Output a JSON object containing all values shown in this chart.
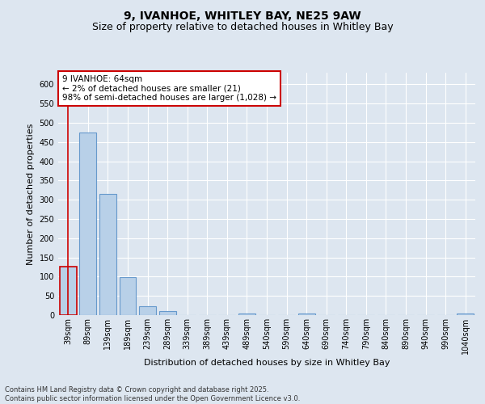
{
  "title_line1": "9, IVANHOE, WHITLEY BAY, NE25 9AW",
  "title_line2": "Size of property relative to detached houses in Whitley Bay",
  "xlabel": "Distribution of detached houses by size in Whitley Bay",
  "ylabel": "Number of detached properties",
  "categories": [
    "39sqm",
    "89sqm",
    "139sqm",
    "189sqm",
    "239sqm",
    "289sqm",
    "339sqm",
    "389sqm",
    "439sqm",
    "489sqm",
    "540sqm",
    "590sqm",
    "640sqm",
    "690sqm",
    "740sqm",
    "790sqm",
    "840sqm",
    "890sqm",
    "940sqm",
    "990sqm",
    "1040sqm"
  ],
  "values": [
    125,
    475,
    315,
    98,
    23,
    10,
    0,
    0,
    0,
    5,
    0,
    0,
    5,
    0,
    0,
    0,
    0,
    0,
    0,
    0,
    5
  ],
  "bar_color": "#b8d0e8",
  "bar_edge_color": "#6699cc",
  "highlight_bar_index": 0,
  "highlight_bar_edge_color": "#cc0000",
  "annotation_text": "9 IVANHOE: 64sqm\n← 2% of detached houses are smaller (21)\n98% of semi-detached houses are larger (1,028) →",
  "annotation_box_edge_color": "#cc0000",
  "annotation_box_face_color": "#ffffff",
  "vline_color": "#cc0000",
  "ylim": [
    0,
    630
  ],
  "yticks": [
    0,
    50,
    100,
    150,
    200,
    250,
    300,
    350,
    400,
    450,
    500,
    550,
    600
  ],
  "background_color": "#dde6f0",
  "grid_color": "#ffffff",
  "footer_line1": "Contains HM Land Registry data © Crown copyright and database right 2025.",
  "footer_line2": "Contains public sector information licensed under the Open Government Licence v3.0.",
  "title_fontsize": 10,
  "subtitle_fontsize": 9,
  "axis_label_fontsize": 8,
  "tick_fontsize": 7,
  "annotation_fontsize": 7.5,
  "footer_fontsize": 6
}
